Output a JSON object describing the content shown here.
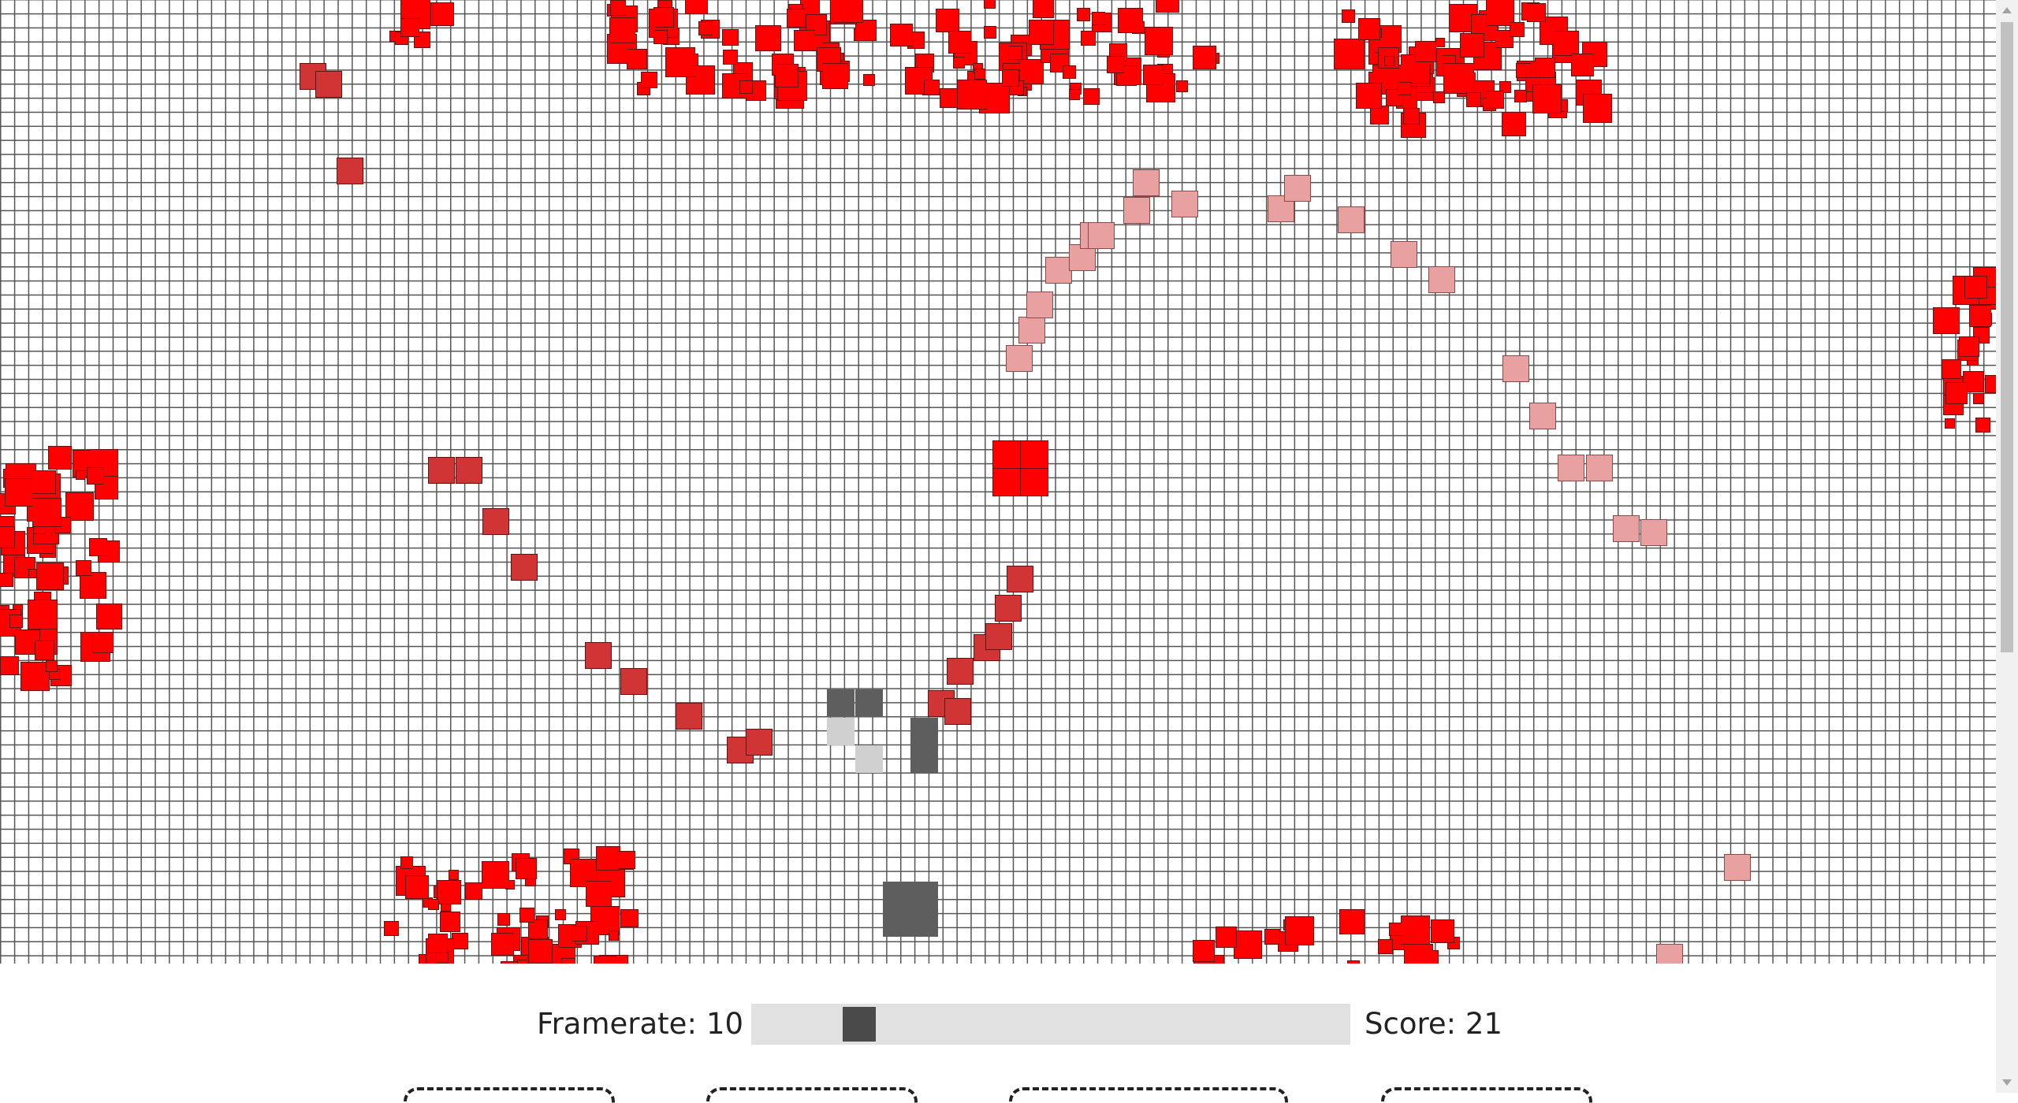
{
  "controls": {
    "framerate_label": "Framerate:",
    "framerate_value": "10",
    "score_label": "Score: 21",
    "framerate_min": 1,
    "framerate_max": 60,
    "buttons": [
      "",
      "",
      "",
      ""
    ]
  },
  "colors": {
    "grid_line": "#555555",
    "red": "#ff0000",
    "dark_red": "#d13434",
    "pink": "#e8a0a0",
    "dark_gray": "#5e5e5e",
    "light_gray": "#d0d0d0"
  }
}
